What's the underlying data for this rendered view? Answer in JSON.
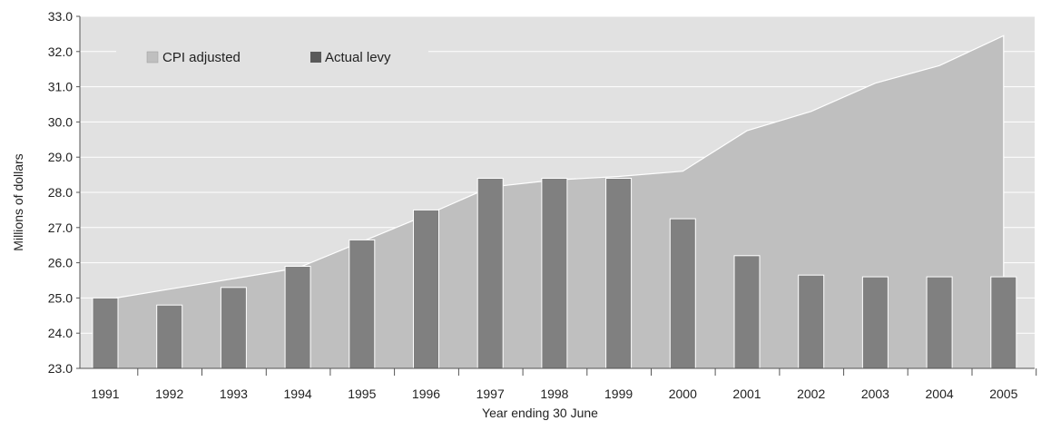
{
  "chart_data": {
    "type": "bar",
    "xlabel": "Year ending 30 June",
    "ylabel": "Millions of dollars",
    "ylim": [
      23.0,
      33.0
    ],
    "yticks": [
      "23.0",
      "24.0",
      "25.0",
      "26.0",
      "27.0",
      "28.0",
      "29.0",
      "30.0",
      "31.0",
      "32.0",
      "33.0"
    ],
    "categories": [
      "1991",
      "1992",
      "1993",
      "1994",
      "1995",
      "1996",
      "1997",
      "1998",
      "1999",
      "2000",
      "2001",
      "2002",
      "2003",
      "2004",
      "2005"
    ],
    "series": [
      {
        "name": "CPI adjusted",
        "type": "area",
        "color": "#bfbfbf",
        "values": [
          25.0,
          25.25,
          25.55,
          25.85,
          26.6,
          27.35,
          28.15,
          28.35,
          28.45,
          28.6,
          29.75,
          30.3,
          31.1,
          31.6,
          32.45
        ]
      },
      {
        "name": "Actual levy",
        "type": "bar",
        "color": "#808080",
        "values": [
          25.0,
          24.8,
          25.3,
          25.9,
          26.65,
          27.5,
          28.4,
          28.4,
          28.4,
          27.25,
          26.2,
          25.65,
          25.6,
          25.6,
          25.6
        ]
      }
    ],
    "grid": true,
    "background": "#e1e1e1",
    "legend": {
      "position": "top-left",
      "items": [
        "CPI adjusted",
        "Actual levy"
      ]
    }
  }
}
